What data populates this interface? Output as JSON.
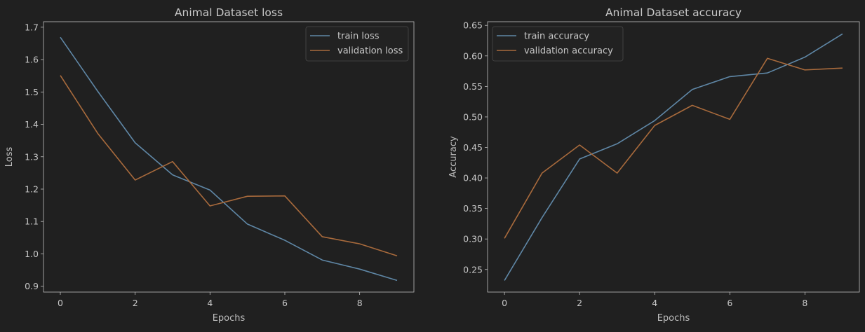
{
  "colors": {
    "background": "#202020",
    "axes": "#bfbfbf",
    "train": "#5f87a6",
    "validation": "#a86a3c"
  },
  "chart_data": [
    {
      "type": "line",
      "title": "Animal Dataset loss",
      "xlabel": "Epochs",
      "ylabel": "Loss",
      "xlim": [
        -0.45,
        9.45
      ],
      "ylim": [
        0.882,
        1.717
      ],
      "xticks": [
        0,
        2,
        4,
        6,
        8
      ],
      "yticks": [
        0.9,
        1.0,
        1.1,
        1.2,
        1.3,
        1.4,
        1.5,
        1.6,
        1.7
      ],
      "ytick_labels": [
        "0.9",
        "1.0",
        "1.1",
        "1.2",
        "1.3",
        "1.4",
        "1.5",
        "1.6",
        "1.7"
      ],
      "legend": "top-right",
      "grid": false,
      "x": [
        0,
        1,
        2,
        3,
        4,
        5,
        6,
        7,
        8,
        9
      ],
      "series": [
        {
          "name": "train loss",
          "values": [
            1.669,
            1.502,
            1.343,
            1.244,
            1.197,
            1.092,
            1.042,
            0.981,
            0.953,
            0.918
          ]
        },
        {
          "name": "validation loss",
          "values": [
            1.551,
            1.372,
            1.228,
            1.285,
            1.148,
            1.178,
            1.179,
            1.053,
            1.031,
            0.994
          ]
        }
      ]
    },
    {
      "type": "line",
      "title": "Animal Dataset accuracy",
      "xlabel": "Epochs",
      "ylabel": "Accuracy",
      "xlim": [
        -0.45,
        9.45
      ],
      "ylim": [
        0.213,
        0.656
      ],
      "xticks": [
        0,
        2,
        4,
        6,
        8
      ],
      "yticks": [
        0.25,
        0.3,
        0.35,
        0.4,
        0.45,
        0.5,
        0.55,
        0.6,
        0.65
      ],
      "ytick_labels": [
        "0.25",
        "0.30",
        "0.35",
        "0.40",
        "0.45",
        "0.50",
        "0.55",
        "0.60",
        "0.65"
      ],
      "legend": "top-left",
      "grid": false,
      "x": [
        0,
        1,
        2,
        3,
        4,
        5,
        6,
        7,
        8,
        9
      ],
      "series": [
        {
          "name": "train accuracy",
          "values": [
            0.232,
            0.335,
            0.431,
            0.456,
            0.494,
            0.545,
            0.566,
            0.572,
            0.598,
            0.636
          ]
        },
        {
          "name": "validation accuracy",
          "values": [
            0.301,
            0.408,
            0.454,
            0.408,
            0.486,
            0.519,
            0.496,
            0.596,
            0.577,
            0.58
          ]
        }
      ]
    }
  ]
}
